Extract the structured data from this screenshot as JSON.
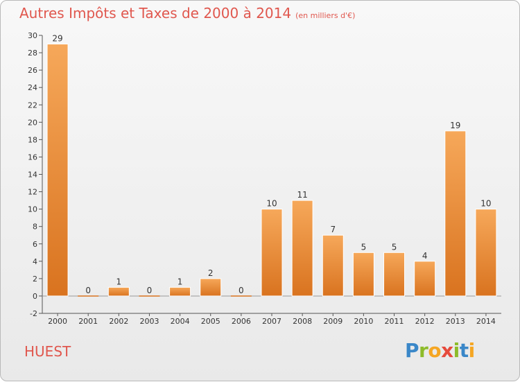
{
  "header": {
    "title": "Autres Impôts et Taxes de 2000 à 2014",
    "unit": "(en milliers d'€)"
  },
  "footer": {
    "commune": "HUEST",
    "logo_text": "Proxiti"
  },
  "colors": {
    "title": "#e0574e",
    "bar_top": "#f6a85a",
    "bar_bottom": "#d9731f",
    "axis": "#555555",
    "grid": "#cccccc"
  },
  "chart_data": {
    "type": "bar",
    "title": "Autres Impôts et Taxes de 2000 à 2014",
    "subtitle": "(en milliers d'€)",
    "xlabel": "",
    "ylabel": "",
    "categories": [
      "2000",
      "2001",
      "2002",
      "2003",
      "2004",
      "2005",
      "2006",
      "2007",
      "2008",
      "2009",
      "2010",
      "2011",
      "2012",
      "2013",
      "2014"
    ],
    "values": [
      29,
      0,
      1,
      0,
      1,
      2,
      0,
      10,
      11,
      7,
      5,
      5,
      4,
      19,
      10
    ],
    "data_labels": [
      "29",
      "0",
      "1",
      "0",
      "1",
      "2",
      "0",
      "10",
      "11",
      "7",
      "5",
      "5",
      "4",
      "19",
      "10"
    ],
    "ylim": [
      -2,
      30
    ],
    "yticks": [
      -2,
      0,
      2,
      4,
      6,
      8,
      10,
      12,
      14,
      16,
      18,
      20,
      22,
      24,
      26,
      28,
      30
    ],
    "grid": false,
    "legend": "none"
  }
}
